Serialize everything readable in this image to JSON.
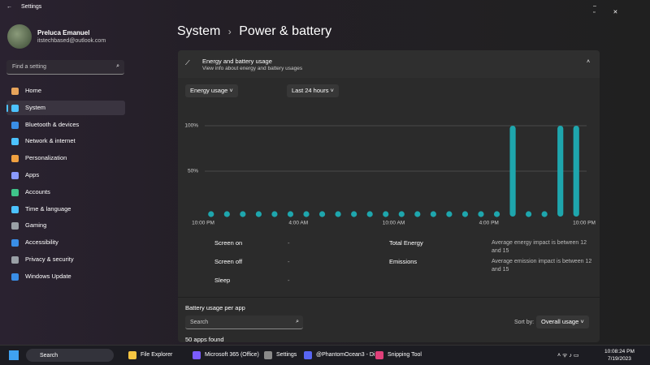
{
  "window": {
    "title": "Settings"
  },
  "profile": {
    "name": "Preluca Emanuel",
    "email": "itstechbased@outlook.com"
  },
  "search": {
    "placeholder": "Find a setting"
  },
  "nav": [
    "Home",
    "System",
    "Bluetooth & devices",
    "Network & internet",
    "Personalization",
    "Apps",
    "Accounts",
    "Time & language",
    "Gaming",
    "Accessibility",
    "Privacy & security",
    "Windows Update"
  ],
  "breadcrumb": {
    "parent": "System",
    "separator": "›",
    "current": "Power & battery"
  },
  "energy_card": {
    "title": "Energy and battery usage",
    "subtitle": "View info about energy and battery usages",
    "dropdowns": [
      "Energy usage",
      "Last 24 hours"
    ]
  },
  "chart": {
    "type": "bar",
    "color": "#1ea6ad",
    "values": [
      0,
      0,
      0,
      0,
      0,
      0,
      0,
      0,
      0,
      0,
      0,
      0,
      0,
      0,
      0,
      0,
      0,
      0,
      0,
      100,
      0,
      0,
      100,
      100
    ],
    "ylim": [
      0,
      100
    ],
    "yticks": [
      {
        "value": 50,
        "label": "50%"
      },
      {
        "value": 100,
        "label": "100%"
      }
    ],
    "xlim": [
      0,
      24
    ],
    "xticks": [
      {
        "value": 0,
        "label": "10:00 PM"
      },
      {
        "value": 6,
        "label": "4:00 AM"
      },
      {
        "value": 12,
        "label": "10:00 AM"
      },
      {
        "value": 18,
        "label": "4:00 PM"
      },
      {
        "value": 24,
        "label": "10:00 PM"
      }
    ],
    "grid": true
  },
  "stats": [
    {
      "label": "Screen on",
      "value": "-"
    },
    {
      "label": "Screen off",
      "value": "-"
    },
    {
      "label": "Sleep",
      "value": "-"
    }
  ],
  "impact": [
    {
      "label": "Total Energy",
      "text": "Average energy impact is between 12 and 15"
    },
    {
      "label": "Emissions",
      "text": "Average emission impact is between 12 and 15"
    }
  ],
  "app_usage": {
    "title": "Battery usage per app",
    "search": "Search",
    "sort_label": "Sort by:",
    "sort_value": "Overall usage",
    "count": "50 apps found"
  },
  "taskbar": {
    "search": "Search",
    "apps": [
      "File Explorer",
      "Microsoft 365 (Office)",
      "Settings",
      "@PhantomOcean3 - Di",
      "Snipping Tool"
    ],
    "time": "10:08:24 PM",
    "date": "7/19/2023"
  }
}
